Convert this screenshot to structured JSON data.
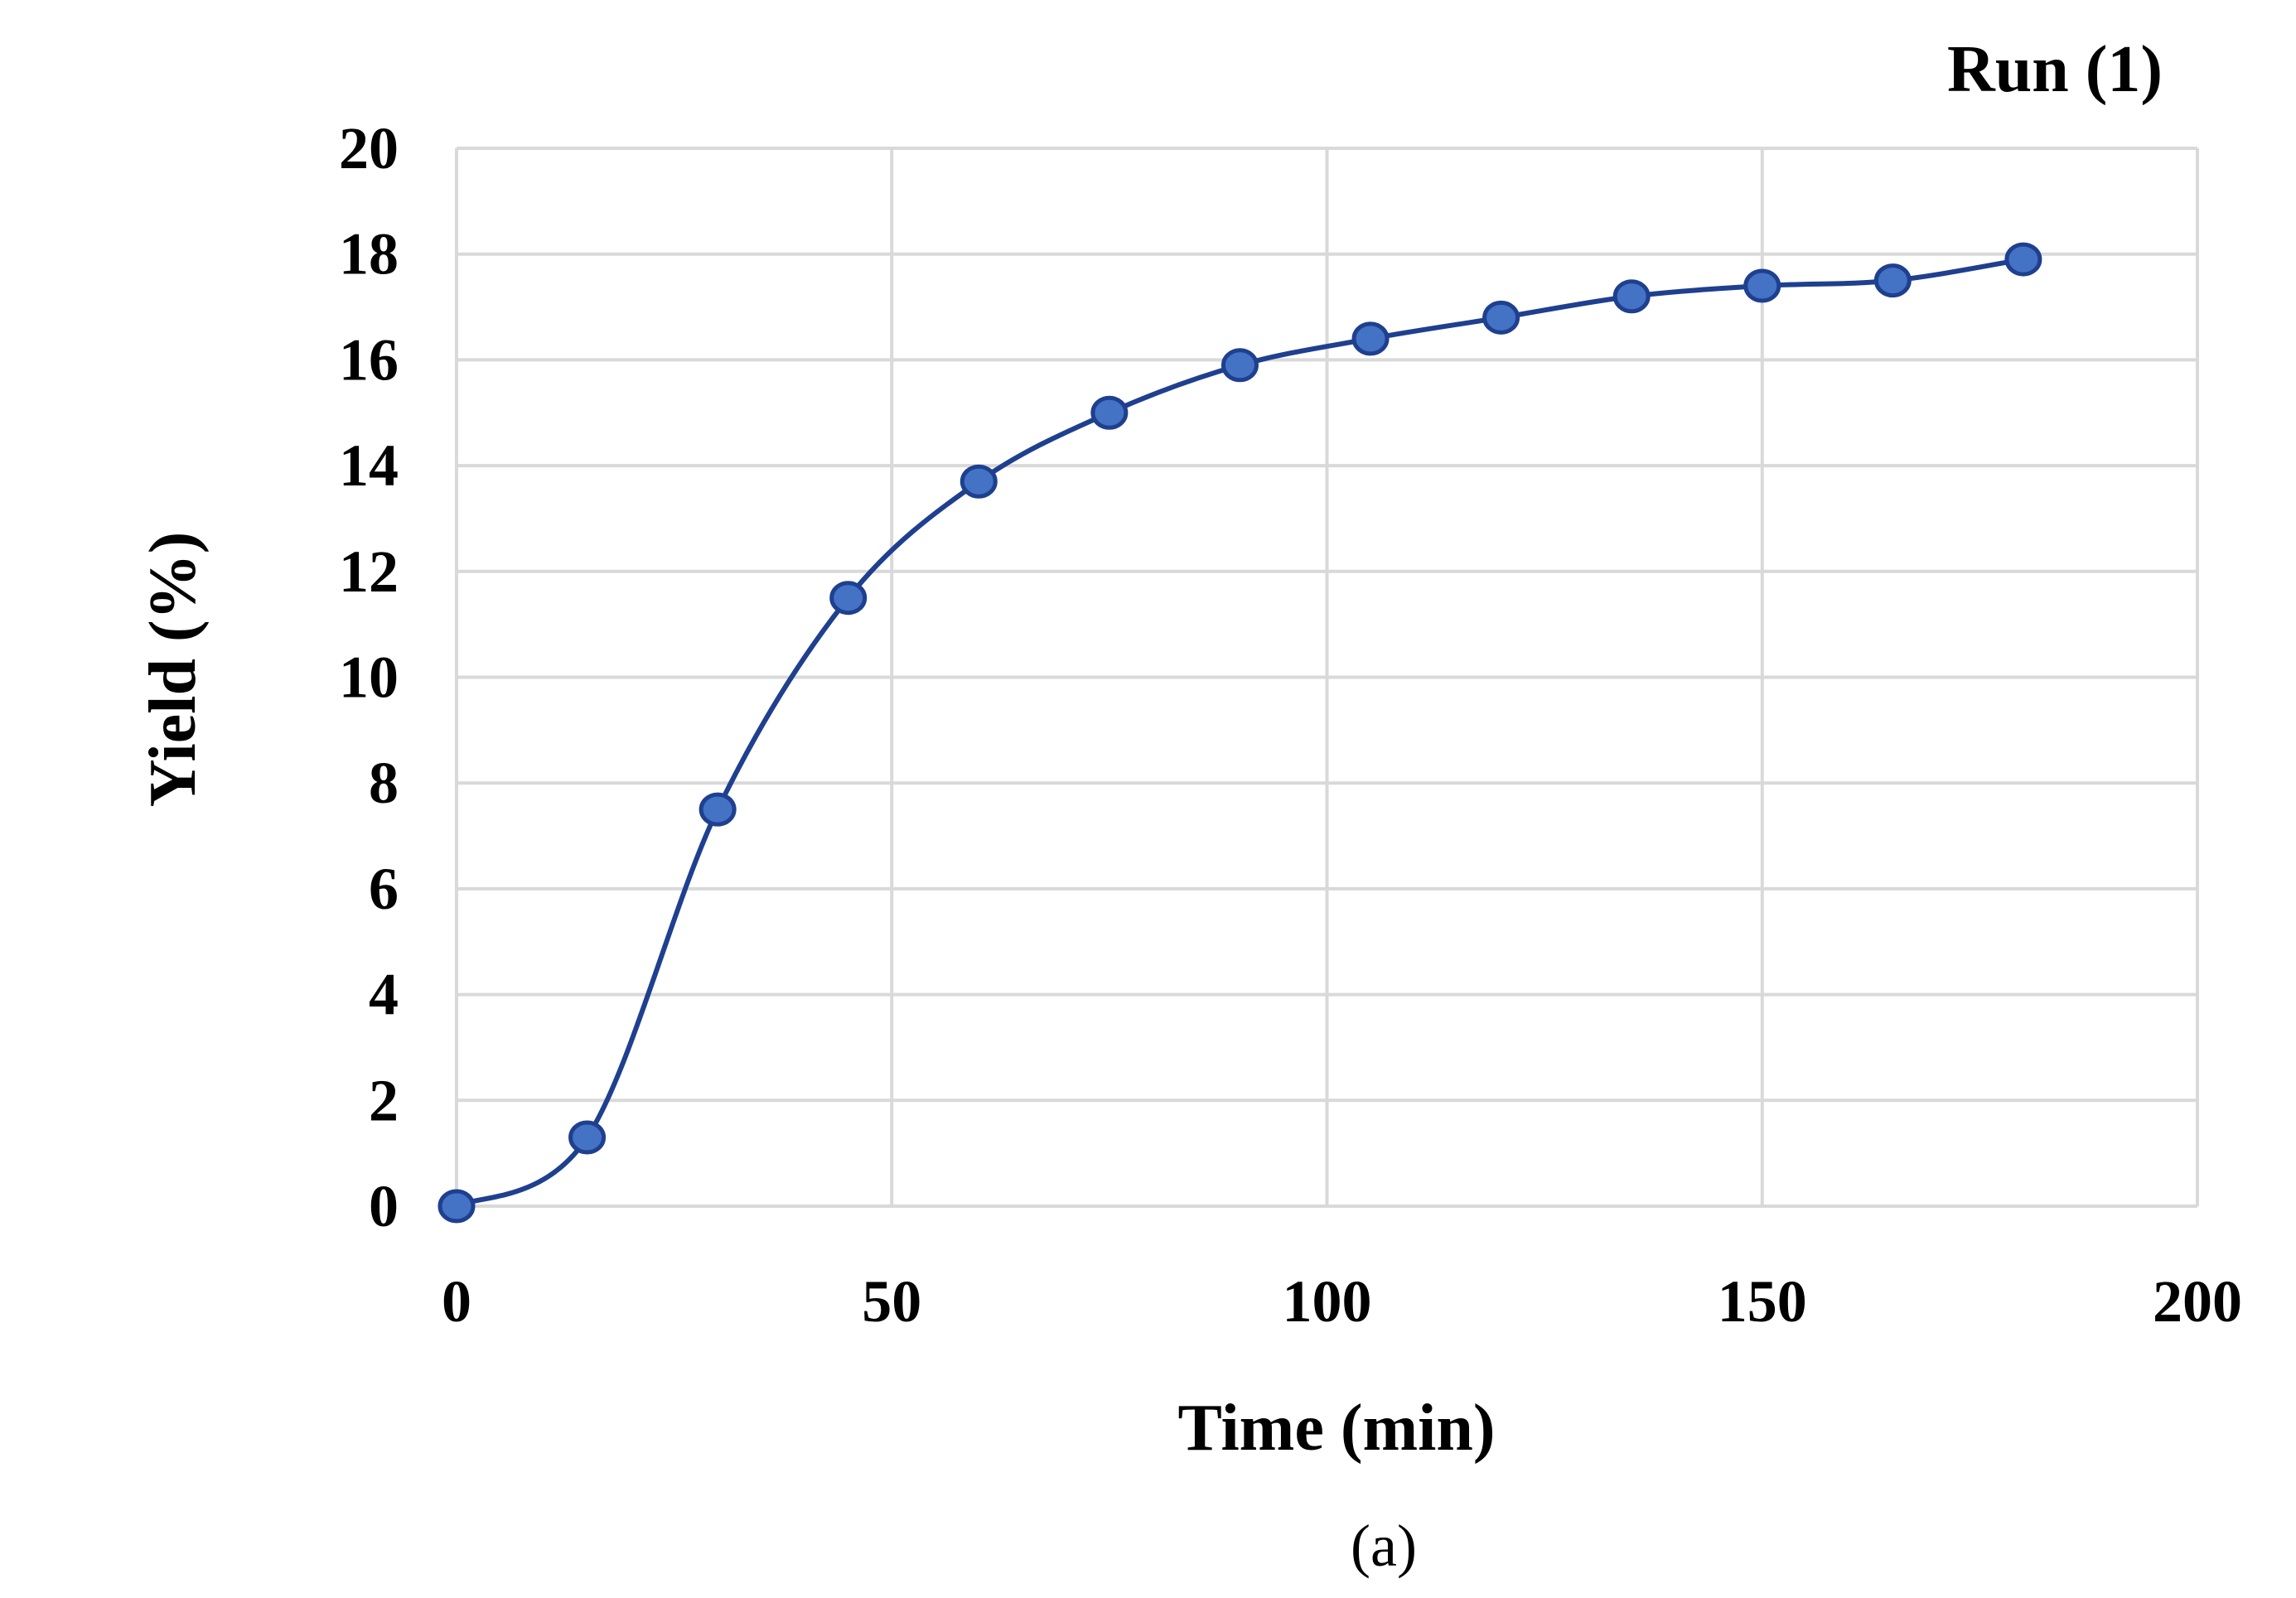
{
  "chart_data": {
    "type": "line",
    "title": "Run (1)",
    "xlabel": "Time (min)",
    "ylabel": "Yield (%)",
    "caption": "(a)",
    "xlim": [
      0,
      200
    ],
    "ylim": [
      0,
      20
    ],
    "xticks": [
      0,
      50,
      100,
      150,
      200
    ],
    "yticks": [
      0,
      2,
      4,
      6,
      8,
      10,
      12,
      14,
      16,
      18,
      20
    ],
    "grid": true,
    "smooth": true,
    "marker": "circle",
    "colors": {
      "line": "#1f3f8f",
      "marker_fill": "#4472c4",
      "grid": "#d9d9d9"
    },
    "series": [
      {
        "x": [
          0,
          15,
          30,
          45,
          60,
          75,
          90,
          105,
          120,
          135,
          150,
          165,
          180
        ],
        "y": [
          0,
          1.3,
          7.5,
          11.5,
          13.7,
          15.0,
          15.9,
          16.4,
          16.8,
          17.2,
          17.4,
          17.5,
          17.9
        ]
      }
    ]
  }
}
